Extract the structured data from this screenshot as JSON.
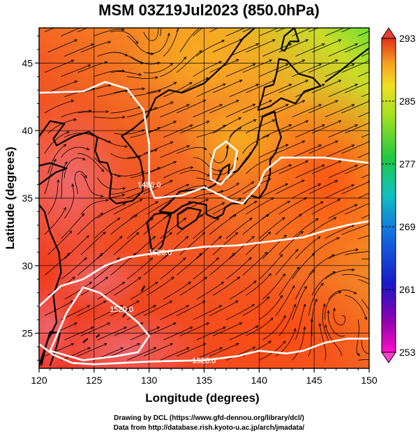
{
  "title": "MSM 03Z19Jul2023 (850.0hPa)",
  "xaxis": {
    "label": "Longitude (degrees)",
    "ticks": [
      120,
      125,
      130,
      135,
      140,
      145,
      150
    ],
    "range": [
      120,
      150
    ]
  },
  "yaxis": {
    "label": "Latitude  (degrees)",
    "ticks": [
      25,
      30,
      35,
      40,
      45
    ],
    "range": [
      22.4,
      47.6
    ]
  },
  "colorbar": {
    "ticks": [
      293,
      285,
      277,
      269,
      261,
      253
    ],
    "range": [
      253,
      293
    ]
  },
  "contours": [
    {
      "label": "1480.0",
      "points": [
        [
          120,
          42.8
        ],
        [
          124,
          42.9
        ],
        [
          126,
          43.6
        ],
        [
          128,
          43.1
        ],
        [
          129.5,
          41.5
        ],
        [
          130,
          39
        ],
        [
          130,
          36
        ],
        [
          130.5,
          35
        ],
        [
          133,
          35.2
        ],
        [
          135,
          35.8
        ],
        [
          136.5,
          35.2
        ],
        [
          137.5,
          34.8
        ],
        [
          138.5,
          34.6
        ],
        [
          140,
          36
        ],
        [
          140.5,
          37
        ],
        [
          142,
          38
        ],
        [
          146,
          38
        ],
        [
          150,
          37.6
        ]
      ]
    },
    {
      "label": "",
      "points": [
        [
          135.6,
          36.4
        ],
        [
          136.5,
          36
        ],
        [
          137.7,
          37.1
        ],
        [
          138,
          38.5
        ],
        [
          137,
          39.2
        ],
        [
          136,
          38.6
        ],
        [
          135.6,
          37.5
        ],
        [
          135.6,
          36.4
        ]
      ]
    },
    {
      "label": "1520.0",
      "points": [
        [
          120,
          27
        ],
        [
          122,
          28.5
        ],
        [
          124,
          29
        ],
        [
          126,
          30
        ],
        [
          128,
          30.6
        ],
        [
          131,
          31
        ],
        [
          135,
          31.4
        ],
        [
          138,
          31.5
        ],
        [
          141,
          31.8
        ],
        [
          144,
          32.1
        ],
        [
          146,
          32.6
        ],
        [
          148,
          33
        ],
        [
          150,
          33.3
        ]
      ]
    },
    {
      "label": "1520.0",
      "points": [
        [
          121,
          23.7
        ],
        [
          122.5,
          26.5
        ],
        [
          124,
          28.4
        ],
        [
          125.5,
          28
        ],
        [
          127.5,
          26.8
        ],
        [
          129,
          25.8
        ],
        [
          130,
          24.8
        ],
        [
          129,
          23.6
        ],
        [
          127,
          23.3
        ],
        [
          124,
          23
        ],
        [
          121,
          23.7
        ]
      ]
    },
    {
      "label": "1520.0",
      "points": [
        [
          120,
          24.2
        ],
        [
          121.3,
          23.4
        ],
        [
          123,
          22.8
        ],
        [
          125,
          22.7
        ],
        [
          130,
          22.9
        ],
        [
          135,
          23
        ],
        [
          138,
          23.3
        ],
        [
          140,
          23.7
        ],
        [
          142.5,
          23.5
        ],
        [
          144,
          23.7
        ],
        [
          146,
          24.3
        ],
        [
          148,
          24.6
        ],
        [
          150,
          24.6
        ]
      ]
    }
  ],
  "colors": {
    "contour": "#ffffff",
    "coast": "#000000",
    "stream": "#000000"
  },
  "credits": [
    "Drawing by DCL (https://www.gfd-dennou.org/library/dcl/)",
    "Data from http://database.rish.kyoto-u.ac.jp/arch/jmadata/"
  ]
}
